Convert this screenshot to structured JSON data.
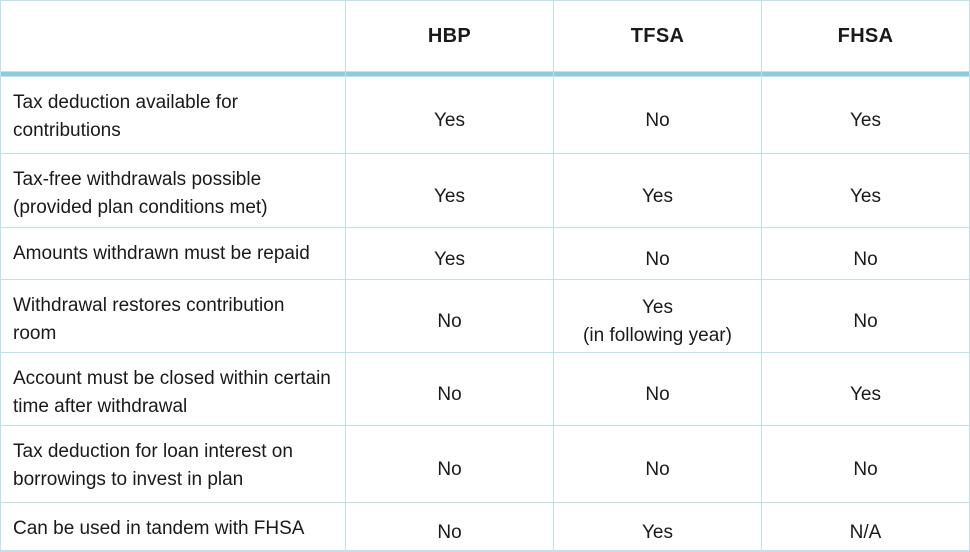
{
  "table": {
    "columns": [
      "",
      "HBP",
      "TFSA",
      "FHSA"
    ],
    "rows": [
      {
        "label": "Tax deduction available for contributions",
        "values": [
          "Yes",
          "No",
          "Yes"
        ]
      },
      {
        "label": "Tax-free withdrawals possible (provided plan conditions met)",
        "values": [
          "Yes",
          "Yes",
          "Yes"
        ]
      },
      {
        "label": "Amounts withdrawn must be repaid",
        "values": [
          "Yes",
          "No",
          "No"
        ]
      },
      {
        "label": "Withdrawal restores contribution room",
        "values": [
          "No",
          "Yes",
          "No"
        ],
        "note": "(in following year)"
      },
      {
        "label": "Account must be closed within certain time after withdrawal",
        "values": [
          "No",
          "No",
          "Yes"
        ]
      },
      {
        "label": "Tax deduction for loan interest on borrowings to invest in plan",
        "values": [
          "No",
          "No",
          "No"
        ]
      },
      {
        "label": "Can be used in tandem with FHSA",
        "values": [
          "No",
          "Yes",
          "N/A"
        ]
      }
    ],
    "colors": {
      "header_rule": "#8dcbda",
      "grid_line": "#c3e0e9",
      "text": "#1a1a1a",
      "cell_background": "#ffffff"
    }
  }
}
